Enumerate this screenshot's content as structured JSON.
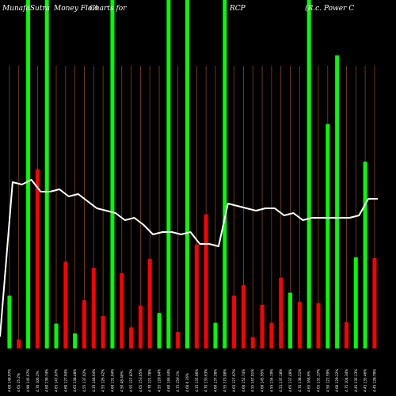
{
  "title": {
    "segments": [
      "MunafaSutra",
      "Money Flow",
      "Charts for",
      "RCP",
      "(R.c. Power C"
    ]
  },
  "chart_data": {
    "type": "bar",
    "background": "#000000",
    "colors": {
      "up": "#00ff00",
      "down": "#ff0000",
      "line": "#ffffff",
      "grid": "#8b4513"
    },
    "bar_ylim": [
      0,
      410
    ],
    "bars": [
      {
        "x": "4.60 148.97%",
        "value": 70,
        "color": "green",
        "full": false
      },
      {
        "x": "4.65 15.2%",
        "value": 12,
        "color": "red",
        "full": false
      },
      {
        "x": "4.90 145.67%",
        "value": 0,
        "color": "green",
        "full": true
      },
      {
        "x": "4.70 106.2%",
        "value": 238,
        "color": "red",
        "full": false
      },
      {
        "x": "4.60 139.74%",
        "value": 0,
        "color": "green",
        "full": true
      },
      {
        "x": "4.65 147.07%",
        "value": 33,
        "color": "green",
        "full": false
      },
      {
        "x": "4.60 127.94%",
        "value": 115,
        "color": "red",
        "full": false
      },
      {
        "x": "4.65 138.48%",
        "value": 20,
        "color": "green",
        "full": false
      },
      {
        "x": "4.55 137.02%",
        "value": 64,
        "color": "red",
        "full": false
      },
      {
        "x": "4.35 148.64%",
        "value": 107,
        "color": "red",
        "full": false
      },
      {
        "x": "4.55 126.42%",
        "value": 43,
        "color": "red",
        "full": false
      },
      {
        "x": "4.60 131.64%",
        "value": 0,
        "color": "green",
        "full": true
      },
      {
        "x": "4.50 48.48%",
        "value": 100,
        "color": "red",
        "full": false
      },
      {
        "x": "4.55 127.87%",
        "value": 28,
        "color": "red",
        "full": false
      },
      {
        "x": "4.65 153.05%",
        "value": 57,
        "color": "red",
        "full": false
      },
      {
        "x": "4.70 121.78%",
        "value": 119,
        "color": "red",
        "full": false
      },
      {
        "x": "4.55 120.84%",
        "value": 47,
        "color": "green",
        "full": false
      },
      {
        "x": "4.60 146.44%",
        "value": 0,
        "color": "green",
        "full": true
      },
      {
        "x": "4.75 159.1%",
        "value": 22,
        "color": "red",
        "full": false
      },
      {
        "x": "4.60 0.16%",
        "value": 0,
        "color": "green",
        "full": true
      },
      {
        "x": "4.35 135.06%",
        "value": 138,
        "color": "red",
        "full": false
      },
      {
        "x": "4.70 133.63%",
        "value": 178,
        "color": "red",
        "full": false
      },
      {
        "x": "4.60 137.58%",
        "value": 34,
        "color": "green",
        "full": false
      },
      {
        "x": "4.55 173.08%",
        "value": 0,
        "color": "green",
        "full": true
      },
      {
        "x": "4.65 127.67%",
        "value": 70,
        "color": "red",
        "full": false
      },
      {
        "x": "4.60 152.74%",
        "value": 84,
        "color": "red",
        "full": false
      },
      {
        "x": "4.55 147.01%",
        "value": 15,
        "color": "red",
        "full": false
      },
      {
        "x": "4.60 145.95%",
        "value": 58,
        "color": "red",
        "full": false
      },
      {
        "x": "4.55 134.19%",
        "value": 34,
        "color": "red",
        "full": false
      },
      {
        "x": "4.55 137.18%",
        "value": 94,
        "color": "red",
        "full": false
      },
      {
        "x": "4.65 137.48%",
        "value": 74,
        "color": "green",
        "full": false
      },
      {
        "x": "4.70 138.51%",
        "value": 62,
        "color": "red",
        "full": false
      },
      {
        "x": "4.65 168.6%",
        "value": 0,
        "color": "green",
        "full": true
      },
      {
        "x": "4.65 131.37%",
        "value": 60,
        "color": "red",
        "full": false
      },
      {
        "x": "4.50 122.59%",
        "value": 298,
        "color": "green",
        "full": false
      },
      {
        "x": "4.60 129.22%",
        "value": 389,
        "color": "green",
        "full": false
      },
      {
        "x": "4.75 104.34%",
        "value": 35,
        "color": "red",
        "full": false
      },
      {
        "x": "4.45 135.13%",
        "value": 121,
        "color": "green",
        "full": false
      },
      {
        "x": "4.45 135.46%",
        "value": 248,
        "color": "green",
        "full": false
      },
      {
        "x": "4.45 128.79%",
        "value": 120,
        "color": "red",
        "full": false
      }
    ],
    "price_line": {
      "ylim": [
        0,
        100
      ],
      "values": [
        5,
        70,
        69,
        71,
        66,
        66,
        67,
        64,
        65,
        62,
        59,
        58,
        57,
        54,
        55,
        52,
        48,
        49,
        49,
        48,
        49,
        44,
        44,
        43,
        61,
        60,
        59,
        58,
        59,
        59,
        56,
        57,
        54,
        55,
        55,
        55,
        55,
        55,
        56,
        63,
        63
      ]
    },
    "grid": true,
    "legend": "none"
  }
}
